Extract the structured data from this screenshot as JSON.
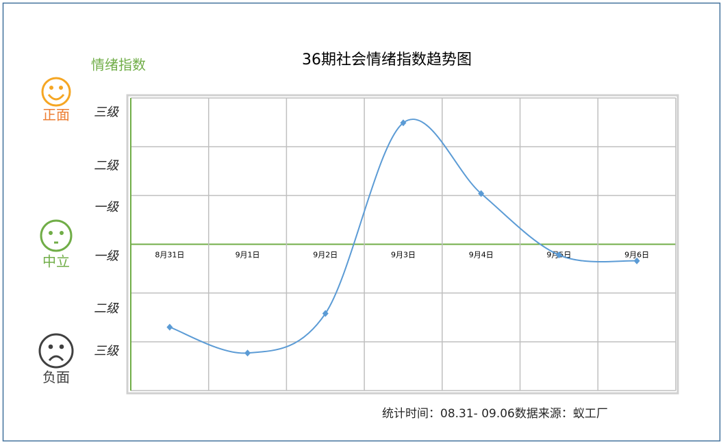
{
  "chart_data": {
    "type": "line",
    "title": "36期社会情绪指数趋势图",
    "y_title": "情绪指数",
    "mood_labels": [
      "正面",
      "中立",
      "负面"
    ],
    "source": "统计时间：08.31- 09.06数据来源：蚁工厂",
    "categories": [
      "8月31日",
      "9月1日",
      "9月2日",
      "9月3日",
      "9月4日",
      "9月5日",
      "9月6日"
    ],
    "series": [
      {
        "color": "#5b9bd5",
        "values": [
          -1.7,
          -2.23,
          -1.42,
          2.49,
          1.04,
          -0.22,
          -0.34
        ]
      }
    ],
    "ylim": [
      -3,
      3
    ],
    "yticks": [
      {
        "value": 2.7,
        "label": "三级"
      },
      {
        "value": 1.6,
        "label": "二级"
      },
      {
        "value": 0.75,
        "label": "一级"
      },
      {
        "value": -0.25,
        "label": "一级"
      },
      {
        "value": -1.33,
        "label": "二级"
      },
      {
        "value": -2.2,
        "label": "三级"
      }
    ],
    "ygrid": [
      -3,
      -2,
      -1,
      0,
      1,
      2,
      3
    ],
    "zero_line_color": "#70ad47",
    "grid": true
  }
}
